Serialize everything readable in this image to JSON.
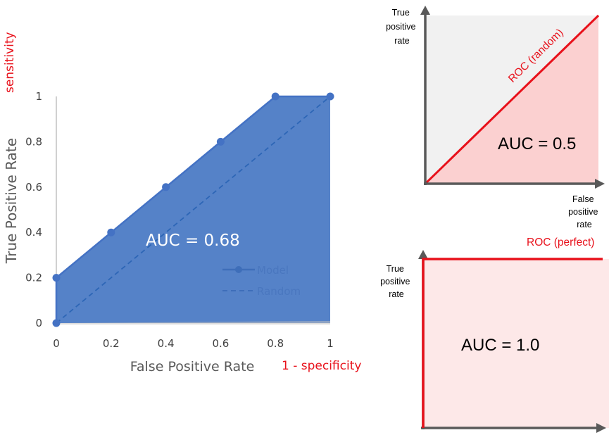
{
  "colors": {
    "fill": "#5582c8",
    "marker": "#4472c4",
    "red": "#e8111b",
    "pink_fill": "#fbd0d0",
    "pink_light": "#fde8e8",
    "grey_fill": "#f1f1f1",
    "axis_dark": "#595959",
    "tick_text": "#404040",
    "axis_label": "#595959"
  },
  "chart_data": [
    {
      "type": "area",
      "x": [
        0,
        0.2,
        0.4,
        0.6,
        0.8,
        1
      ],
      "series": [
        {
          "name": "Model",
          "points": [
            [
              0,
              0
            ],
            [
              0,
              0.2
            ],
            [
              0.2,
              0.4
            ],
            [
              0.4,
              0.6
            ],
            [
              0.6,
              0.8
            ],
            [
              0.8,
              1
            ],
            [
              1,
              1
            ]
          ]
        },
        {
          "name": "Random",
          "points": [
            [
              0,
              0
            ],
            [
              1,
              1
            ]
          ]
        }
      ],
      "xlabel": "False Positive Rate",
      "ylabel": "True Positive Rate",
      "xlim": [
        0,
        1
      ],
      "ylim": [
        0,
        1
      ],
      "xticks": [
        "0",
        "0.2",
        "0.4",
        "0.6",
        "0.8",
        "1"
      ],
      "yticks": [
        "0",
        "0.2",
        "0.4",
        "0.6",
        "0.8",
        "1"
      ],
      "annotation": "AUC = 0.68",
      "xlabel_note": "1 - specificity",
      "ylabel_note": "sensitivity",
      "legend": "right"
    },
    {
      "type": "area",
      "series": [
        {
          "name": "ROC (random)",
          "points": [
            [
              0,
              0
            ],
            [
              1,
              1
            ]
          ]
        }
      ],
      "xlabel": "False positive rate",
      "ylabel": "True positive rate",
      "annotation": "AUC = 0.5"
    },
    {
      "type": "area",
      "series": [
        {
          "name": "ROC (perfect)",
          "points": [
            [
              0,
              0
            ],
            [
              0,
              1
            ],
            [
              1,
              1
            ]
          ]
        }
      ],
      "ylabel": "True positive rate",
      "annotation": "AUC = 1.0"
    }
  ],
  "labels": {
    "sensitivity": "sensitivity",
    "specificity": "1 - specificity",
    "main_ylabel": "True Positive Rate",
    "main_xlabel": "False Positive Rate",
    "main_auc": "AUC = 0.68",
    "legend_model": "Model",
    "legend_random": "Random",
    "tr_ylabel": [
      "True",
      "positive",
      "rate"
    ],
    "tr_xlabel": [
      "False",
      "positive",
      "rate"
    ],
    "tr_curve": "ROC (random)",
    "tr_auc": "AUC = 0.5",
    "br_ylabel": [
      "True",
      "positive",
      "rate"
    ],
    "br_curve": "ROC (perfect)",
    "br_auc": "AUC = 1.0"
  }
}
